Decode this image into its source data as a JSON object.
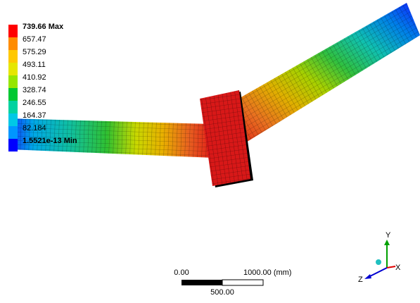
{
  "legend": {
    "labels": [
      "739.66 Max",
      "657.47",
      "575.29",
      "493.11",
      "410.92",
      "328.74",
      "246.55",
      "164.37",
      "82.184",
      "1.5521e-13 Min"
    ]
  },
  "scale_bar": {
    "start_label": "0.00",
    "end_label": "1000.00 (mm)",
    "mid_label": "500.00"
  },
  "triad": {
    "y": "Y",
    "x": "X",
    "z": "Z"
  }
}
